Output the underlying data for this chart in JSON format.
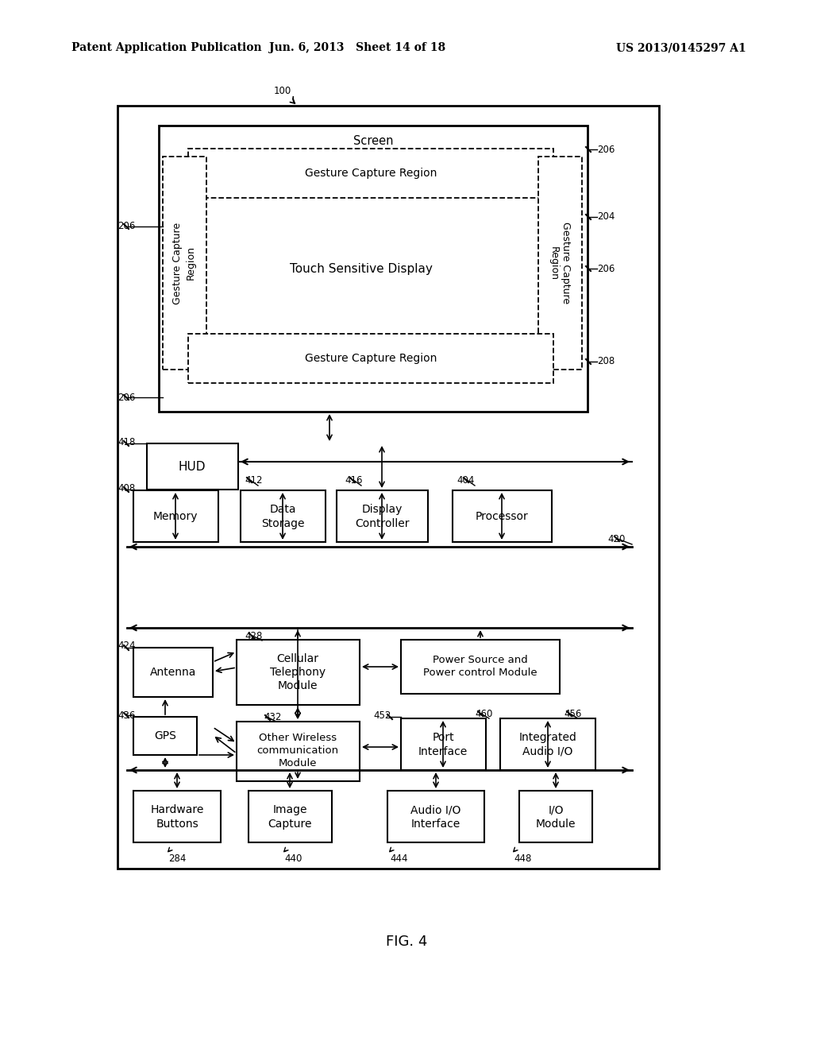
{
  "bg_color": "#ffffff",
  "line_color": "#000000",
  "header_left": "Patent Application Publication",
  "header_center": "Jun. 6, 2013   Sheet 14 of 18",
  "header_right": "US 2013/0145297 A1",
  "fig_caption": "FIG. 4",
  "labels": {
    "screen": "Screen",
    "gcr_top": "Gesture Capture Region",
    "gcr_bot": "Gesture Capture Region",
    "gcr_left": "Gesture Capture\nRegion",
    "gcr_right": "Gesture Capture\nRegion",
    "tsd": "Touch Sensitive Display",
    "hud": "HUD",
    "memory": "Memory",
    "data_storage": "Data\nStorage",
    "display_ctrl": "Display\nController",
    "processor": "Processor",
    "cellular": "Cellular\nTelephony\nModule",
    "other_wireless": "Other Wireless\ncommunication\nModule",
    "power_source": "Power Source and\nPower control Module",
    "antenna": "Antenna",
    "gps": "GPS",
    "port_interface": "Port\nInterface",
    "int_audio": "Integrated\nAudio I/O",
    "hw_buttons": "Hardware\nButtons",
    "img_capture": "Image\nCapture",
    "audio_io": "Audio I/O\nInterface",
    "io_module": "I/O\nModule"
  },
  "refs": {
    "r100": "100",
    "r206a": "206",
    "r206b": "206",
    "r206c": "206",
    "r206d": "206",
    "r204": "204",
    "r208": "208",
    "r418": "418",
    "r408": "408",
    "r412": "412",
    "r416": "416",
    "r404": "404",
    "r420": "420",
    "r428": "428",
    "r432": "432",
    "r424": "424",
    "r436": "436",
    "r452": "452",
    "r460": "460",
    "r456": "456",
    "r284": "284",
    "r440": "440",
    "r444": "444",
    "r448": "448"
  }
}
